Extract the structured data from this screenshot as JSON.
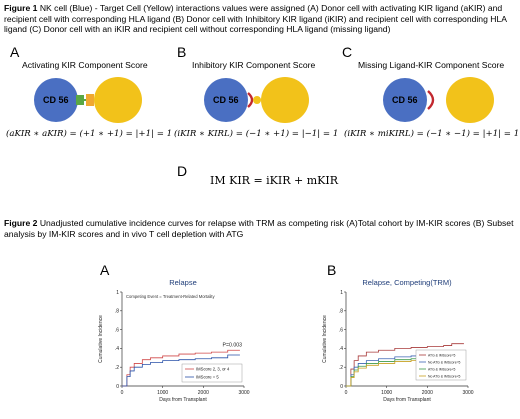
{
  "figure1": {
    "label": "Figure 1",
    "caption": " NK cell (Blue) - Target Cell (Yellow) interactions values were assigned (A) Donor cell with activating KIR ligand (aKIR) and recipient cell with corresponding HLA ligand (B) Donor cell with Inhibitory KIR ligand (iKIR) and recipient cell with corresponding HLA ligand (C) Donor cell with an iKIR and recipient cell without corresponding HLA ligand (missing ligand)",
    "panels": [
      {
        "letter": "A",
        "title": "Activating KIR Component Score",
        "cell_label": "CD 56",
        "formula": "(aKIR ∗ aKIR) = (+1 ∗   +1) = |+1| = 1"
      },
      {
        "letter": "B",
        "title": "Inhibitory KIR Component Score",
        "cell_label": "CD 56",
        "formula": "(iKIR ∗ KIRL) = (−1 ∗   +1) = |−1| = 1"
      },
      {
        "letter": "C",
        "title": "Missing Ligand-KIR Component Score",
        "cell_label": "CD 56",
        "formula": "(iKIR ∗ miKIRL) = (−1 ∗   −1) = |+1| = 1"
      }
    ],
    "panel_d": {
      "letter": "D",
      "equation": "IM KIR =  iKIR + mKIR"
    },
    "colors": {
      "nk_cell": "#4a6fc2",
      "target_cell": "#f2c21a",
      "activating": "#5aa744",
      "activating_ligand": "#f0a830",
      "inhibitory": "#c2282f"
    }
  },
  "figure2": {
    "label": "Figure 2",
    "caption": " Unadjusted cumulative incidence curves for relapse with TRM as competing risk (A)Total cohort by IM-KIR scores (B) Subset analysis by IM-KIR scores and in vivo T cell depletion with ATG"
  },
  "chart_data": [
    {
      "type": "line",
      "panel": "A",
      "title": "Relapse",
      "subtitle": "Competing Event = Treatment-Related Mortality",
      "xlabel": "Days from Transplant",
      "ylabel": "Cumulative Incidence",
      "xlim": [
        0,
        3000
      ],
      "ylim": [
        0,
        1
      ],
      "xticks": [
        "0",
        "1000",
        "2000",
        "3000"
      ],
      "yticks": [
        "0",
        ".2",
        ".4",
        ".6",
        ".8",
        "1"
      ],
      "annotation": "P=0.003",
      "series": [
        {
          "name": "IMScore 2, 3, or 4",
          "color": "#d04848",
          "x": [
            0,
            120,
            200,
            300,
            500,
            700,
            1000,
            1400,
            1800,
            2200,
            2600,
            2600,
            2900
          ],
          "y": [
            0,
            0.12,
            0.2,
            0.24,
            0.28,
            0.3,
            0.32,
            0.34,
            0.35,
            0.36,
            0.37,
            0.38,
            0.38
          ]
        },
        {
          "name": "IMScore = 5",
          "color": "#2850a8",
          "x": [
            0,
            120,
            200,
            300,
            500,
            700,
            1000,
            1400,
            1800,
            2200,
            2600,
            2600,
            2900
          ],
          "y": [
            0,
            0.1,
            0.16,
            0.2,
            0.23,
            0.25,
            0.27,
            0.28,
            0.29,
            0.3,
            0.31,
            0.33,
            0.33
          ]
        }
      ]
    },
    {
      "type": "line",
      "panel": "B",
      "title": "Relapse, Competing(TRM)",
      "xlabel": "Days from Transplant",
      "ylabel": "Cumulative Incidence",
      "xlim": [
        0,
        3000
      ],
      "ylim": [
        0,
        1
      ],
      "xticks": [
        "0",
        "1000",
        "2000",
        "3000"
      ],
      "yticks": [
        "0",
        ".2",
        ".4",
        ".6",
        ".8",
        "1"
      ],
      "series": [
        {
          "name": "ATG & IMScore=5",
          "color": "#a83a3a",
          "x": [
            0,
            120,
            200,
            300,
            500,
            800,
            1200,
            1600,
            2000,
            2400,
            2600,
            2600,
            2900
          ],
          "y": [
            0,
            0.18,
            0.27,
            0.32,
            0.36,
            0.38,
            0.4,
            0.41,
            0.42,
            0.43,
            0.43,
            0.45,
            0.45
          ]
        },
        {
          "name": "No ATG & IMScore=5",
          "color": "#3c64b4",
          "x": [
            0,
            120,
            200,
            300,
            500,
            800,
            1200,
            1600,
            2000,
            2400,
            2900
          ],
          "y": [
            0,
            0.12,
            0.2,
            0.24,
            0.27,
            0.29,
            0.31,
            0.32,
            0.33,
            0.34,
            0.34
          ]
        },
        {
          "name": "ATG & IMScore<5",
          "color": "#3c9a4a",
          "x": [
            0,
            120,
            200,
            300,
            500,
            800,
            1200,
            1600,
            2000,
            2400,
            2900
          ],
          "y": [
            0,
            0.1,
            0.17,
            0.21,
            0.24,
            0.26,
            0.28,
            0.29,
            0.3,
            0.31,
            0.31
          ]
        },
        {
          "name": "No ATG & IMScore<5",
          "color": "#c8a020",
          "x": [
            0,
            120,
            200,
            300,
            500,
            800,
            1200,
            1600,
            2000,
            2400,
            2900
          ],
          "y": [
            0,
            0.09,
            0.15,
            0.19,
            0.22,
            0.24,
            0.26,
            0.27,
            0.28,
            0.29,
            0.29
          ]
        }
      ]
    }
  ]
}
